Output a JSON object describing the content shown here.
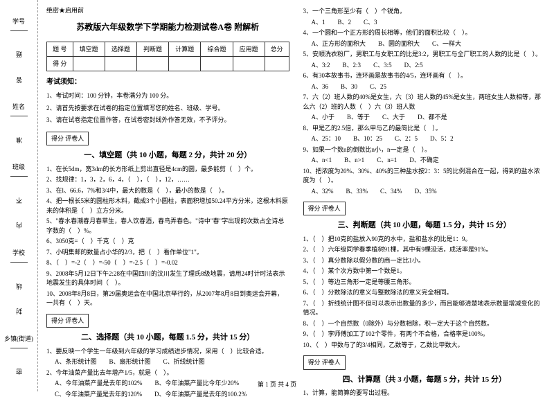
{
  "binding": {
    "fields": [
      "学号",
      "姓名",
      "班级",
      "学校",
      "乡镇(街道)"
    ],
    "marks": [
      "题",
      "答",
      "准",
      "不",
      "内",
      "线",
      "封",
      "密"
    ]
  },
  "secret": "绝密★启用前",
  "title": "苏教版六年级数学下学期能力检测试卷A卷 附解析",
  "scoreTable": {
    "headers": [
      "题 号",
      "填空题",
      "选择题",
      "判断题",
      "计算题",
      "综合题",
      "应用题",
      "总分"
    ],
    "row": "得 分"
  },
  "notice": {
    "heading": "考试须知：",
    "items": [
      "1、考试时间：100 分钟，本卷满分为 100 分。",
      "2、请首先按要求在试卷的指定位置填写您的姓名、班级、学号。",
      "3、请在试卷指定位置作答，在试卷密封线外作答无效，不予评分。"
    ]
  },
  "sectionBox": "得分  评卷人",
  "sections": {
    "s1": "一、填空题（共 10 小题，每题 2 分，共计 20 分）",
    "s2": "二、选择题（共 10 小题，每题 1.5 分，共计 15 分）",
    "s3": "三、判断题（共 10 小题，每题 1.5 分，共计 15 分）",
    "s4": "四、计算题（共 3 小题，每题 5 分，共计 15 分）"
  },
  "fill": [
    "1、在长5dm，宽3dm的长方形纸上剪出直径是4cm的圆，最多能剪（　）个。",
    "2、找规律：1，3，2，6，4，（　），（　），12，……",
    "3、在l、66.6，7%和3/4中，最大的数是（　），最小的数是（　）。",
    "4、把一根长5米的圆柱形木料，截成3个小圆柱，表面积增加50.24平方分米，这根木料原来的体积是（　）立方分米。",
    "5、\"春水春潮春月春草生，春人饮春酒，春鸟弄春色。\"诗中\"春\"字出现的次数占全诗总字数的（　）%。",
    "6、3050克=（　）千克（　）克",
    "7、小明集邮的数量占小华的2/3，把（　）看作单位\"1\"。",
    "8、（　）=-2（　）=-50（　）=-2.5（　）=-0.02",
    "9、2008年5月12日下午2:28在中国四川的汶川发生了理氏8级地震，请用24时计时法表示地震发生的具体时间（　）。",
    "10、2008年8月8日，第29届奥运会在中国北京举行的，从2007年8月8日到奥运会开幕，一共有（　）天。"
  ],
  "choice": [
    {
      "q": "1、要反映一个学生一年级到六年级的学习成绩进步情况，采用（　）比较合适。",
      "opts": [
        "A、条形统计图",
        "B、扇形统计图",
        "C、折线统计图"
      ]
    },
    {
      "q": "2、今年油菜产量比去年增产1/5，就是（　）。",
      "opts": [
        "A、今年油菜产量是去年的102%",
        "B、今年油菜产量比今年少20%",
        "C、今年油菜产量是去年的120%",
        "D、今年油菜产量是去年的100.2%"
      ]
    },
    {
      "q": "3、一个三角形至少有（　）个锐角。",
      "opts": [
        "A、1",
        "B、2",
        "C、3"
      ]
    },
    {
      "q": "4、一个圆和一个正方形的周长相等，他们的面积比较（　）。",
      "opts": [
        "A、正方形的面积大",
        "B、圆的面积大",
        "C、一样大"
      ]
    },
    {
      "q": "5、安顺洗衣粉厂，男职工与女职工的比是3:2，男职工与全厂职工的人数的比是（　）。",
      "opts": [
        "A、3:2",
        "B、2:3",
        "C、3:5",
        "D、2:5"
      ]
    },
    {
      "q": "6、有30本故事书，连环画是故事书的4/5，连环画有（　）。",
      "opts": [
        "A、36",
        "B、30",
        "C、25"
      ]
    },
    {
      "q": "7、六（2）班人数的40%是女生，六（3）班人数的45%是女生，两班女生人数相等，那么六（2）班的人数（　）六（3）班人数",
      "opts": [
        "A、小于",
        "B、等于",
        "C、大于",
        "D、都不是"
      ]
    },
    {
      "q": "8、甲是乙的2.5倍，那么甲与乙的最简比是（　）。",
      "opts": [
        "A、25：10",
        "B、10：25",
        "C、2：5",
        "D、5：2"
      ]
    },
    {
      "q": "9、如果一个数n的倒数比n小，n一定是（　）。",
      "opts": [
        "A、n<1",
        "B、n>1",
        "C、n=1",
        "D、不确定"
      ]
    },
    {
      "q": "10、把浓度为20%、30%、40%的三种盐水按2：3：5的比例混合在一起，得到的盐水浓度为（　）。",
      "opts": [
        "A、32%",
        "B、33%",
        "C、34%",
        "D、35%"
      ]
    }
  ],
  "judge": [
    "1、（　）把10克的盐放入90克的水中，盐和盐水的比是1：9。",
    "2、（　）六年级同学春季植树91棵，其中有9棵没活，成活率是91%。",
    "3、（　）真分数除以假分数的商一定比1小。",
    "4、（　）某个次方数中第一个数是1。",
    "5、（　）等边三角形一定是等腰三角形。",
    "6、（　）分数除法的意义与整数除法的意义完全相同。",
    "7、（　）折线统计图不但可以表示出数量的多少，而且能够清楚地表示数量增减变化的情况。",
    "8、（　）一个自然数（0除外）与分数相除，积一定大于这个自然数。",
    "9、（　）李师傅加工了102个零件，有两个不合格，合格率是100%。",
    "10、（　）甲数与了的3/4相同，乙数等于，乙数比甲数大。"
  ],
  "calc": [
    "1、计算，能简算的要写出过程。"
  ],
  "footer": "第 1 页 共 4 页"
}
